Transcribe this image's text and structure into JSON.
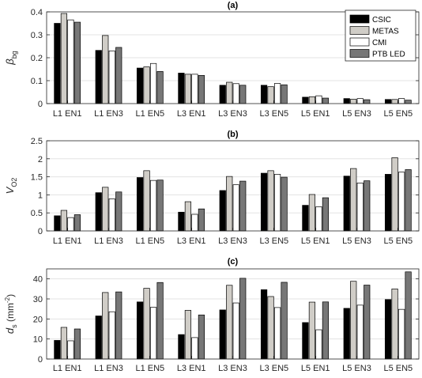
{
  "figure": {
    "legend": [
      {
        "name": "CSIC",
        "color": "#000000"
      },
      {
        "name": "METAS",
        "color": "#d0cdc7"
      },
      {
        "name": "CMI",
        "color": "#ffffff"
      },
      {
        "name": "PTB LED",
        "color": "#777777"
      }
    ]
  },
  "chart_data": [
    {
      "type": "bar",
      "title": "(a)",
      "ylabel": "β",
      "ylabel_sub": "bg",
      "categories": [
        "L1 EN1",
        "L1 EN3",
        "L1 EN5",
        "L3 EN1",
        "L3 EN3",
        "L3 EN5",
        "L5 EN1",
        "L5 EN3",
        "L5 EN5"
      ],
      "ylim": [
        0,
        0.4
      ],
      "yticks": [
        0,
        0.1,
        0.2,
        0.3,
        0.4
      ],
      "ytick_labels": [
        "0",
        "0.1",
        "0.2",
        "0.3",
        "0.4"
      ],
      "grid": true,
      "legend_position": "top-right",
      "series": [
        {
          "name": "CSIC",
          "values": [
            0.35,
            0.232,
            0.155,
            0.133,
            0.08,
            0.08,
            0.028,
            0.022,
            0.018
          ]
        },
        {
          "name": "METAS",
          "values": [
            0.393,
            0.297,
            0.16,
            0.128,
            0.093,
            0.074,
            0.03,
            0.019,
            0.018
          ]
        },
        {
          "name": "CMI",
          "values": [
            0.365,
            0.23,
            0.175,
            0.128,
            0.087,
            0.088,
            0.034,
            0.022,
            0.022
          ]
        },
        {
          "name": "PTB LED",
          "values": [
            0.355,
            0.245,
            0.14,
            0.123,
            0.08,
            0.082,
            0.024,
            0.017,
            0.015
          ]
        }
      ]
    },
    {
      "type": "bar",
      "title": "(b)",
      "ylabel": "V",
      "ylabel_sub": "O2",
      "categories": [
        "L1 EN1",
        "L1 EN3",
        "L1 EN5",
        "L3 EN1",
        "L3 EN3",
        "L3 EN5",
        "L5 EN1",
        "L5 EN3",
        "L5 EN5"
      ],
      "ylim": [
        0,
        2.5
      ],
      "yticks": [
        0,
        0.5,
        1,
        1.5,
        2,
        2.5
      ],
      "ytick_labels": [
        "0",
        "0.5",
        "1",
        "1.5",
        "2",
        "2.5"
      ],
      "grid": true,
      "series": [
        {
          "name": "CSIC",
          "values": [
            0.42,
            1.06,
            1.48,
            0.52,
            1.12,
            1.6,
            0.71,
            1.52,
            1.57
          ]
        },
        {
          "name": "METAS",
          "values": [
            0.57,
            1.21,
            1.67,
            0.81,
            1.51,
            1.67,
            1.01,
            1.73,
            2.03
          ]
        },
        {
          "name": "CMI",
          "values": [
            0.37,
            0.89,
            1.4,
            0.46,
            1.28,
            1.57,
            0.67,
            1.33,
            1.63
          ]
        },
        {
          "name": "PTB LED",
          "values": [
            0.45,
            1.08,
            1.41,
            0.61,
            1.38,
            1.49,
            0.92,
            1.39,
            1.7
          ]
        }
      ]
    },
    {
      "type": "bar",
      "title": "(c)",
      "ylabel": "d",
      "ylabel_sub": "s",
      "ylabel_unit": " (mm",
      "ylabel_unit_sup": "-2",
      "ylabel_unit_close": ")",
      "categories": [
        "L1 EN1",
        "L1 EN3",
        "L1 EN5",
        "L3 EN1",
        "L3 EN3",
        "L3 EN5",
        "L5 EN1",
        "L5 EN3",
        "L5 EN5"
      ],
      "ylim": [
        0,
        45
      ],
      "yticks": [
        0,
        10,
        20,
        30,
        40
      ],
      "ytick_labels": [
        "0",
        "10",
        "20",
        "30",
        "40"
      ],
      "grid": true,
      "series": [
        {
          "name": "CSIC",
          "values": [
            9.3,
            21.5,
            28.5,
            12.2,
            24.5,
            34.6,
            18.2,
            25.3,
            29.7
          ]
        },
        {
          "name": "METAS",
          "values": [
            15.8,
            33.2,
            35.3,
            24.3,
            36.8,
            31.2,
            28.4,
            38.8,
            35.0
          ]
        },
        {
          "name": "CMI",
          "values": [
            9.1,
            23.6,
            25.8,
            10.7,
            28.0,
            25.7,
            14.6,
            26.9,
            24.8
          ]
        },
        {
          "name": "PTB LED",
          "values": [
            15.0,
            33.5,
            38.2,
            22.0,
            40.3,
            38.3,
            28.5,
            36.9,
            43.5
          ]
        }
      ]
    }
  ]
}
